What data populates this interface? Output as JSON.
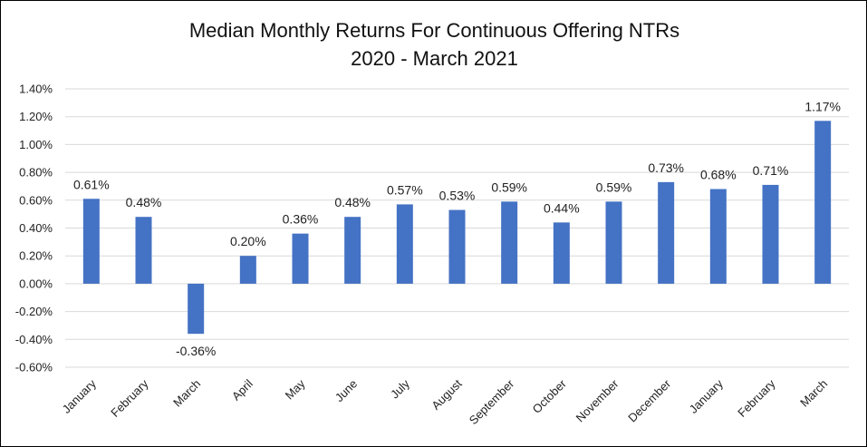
{
  "chart_data": {
    "type": "bar",
    "title": "Median Monthly Returns For Continuous Offering NTRs",
    "subtitle": "2020 - March 2021",
    "categories": [
      "January",
      "February",
      "March",
      "April",
      "May",
      "June",
      "July",
      "August",
      "September",
      "October",
      "November",
      "December",
      "January",
      "February",
      "March"
    ],
    "values": [
      0.61,
      0.48,
      -0.36,
      0.2,
      0.36,
      0.48,
      0.57,
      0.53,
      0.59,
      0.44,
      0.59,
      0.73,
      0.68,
      0.71,
      1.17
    ],
    "data_labels": [
      "0.61%",
      "0.48%",
      "-0.36%",
      "0.20%",
      "0.36%",
      "0.48%",
      "0.57%",
      "0.53%",
      "0.59%",
      "0.44%",
      "0.59%",
      "0.73%",
      "0.68%",
      "0.71%",
      "1.17%"
    ],
    "yticks": [
      1.4,
      1.2,
      1.0,
      0.8,
      0.6,
      0.4,
      0.2,
      0.0,
      -0.2,
      -0.4,
      -0.6
    ],
    "ytick_labels": [
      "1.40%",
      "1.20%",
      "1.00%",
      "0.80%",
      "0.60%",
      "0.40%",
      "0.20%",
      "0.00%",
      "-0.20%",
      "-0.40%",
      "-0.60%"
    ],
    "ylim": [
      -0.6,
      1.4
    ],
    "grid": true,
    "colors": {
      "bar": "#4472C4",
      "grid": "#D9D9D9"
    }
  }
}
